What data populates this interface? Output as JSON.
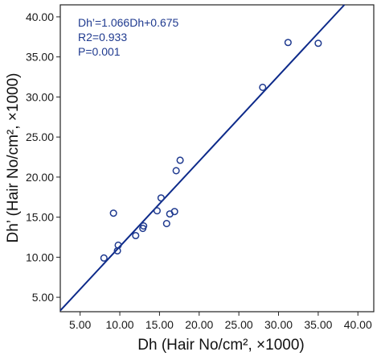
{
  "chart_data": {
    "type": "scatter",
    "xlabel": "Dh (Hair No/cm², ×1000)",
    "ylabel": "Dh’ (Hair No/cm², ×1000)",
    "xlim": [
      2.5,
      42.0
    ],
    "ylim": [
      3.2,
      41.5
    ],
    "x_ticks": [
      "5.00",
      "10.00",
      "15.00",
      "20.00",
      "25.00",
      "30.00",
      "35.00",
      "40.00"
    ],
    "y_ticks": [
      "5.00",
      "10.00",
      "15.00",
      "20.00",
      "25.00",
      "30.00",
      "35.00",
      "40.00"
    ],
    "grid": false,
    "annotations": [
      "Dh’=1.066Dh+0.675",
      "R2=0.933",
      "P=0.001"
    ],
    "fit_line": {
      "slope": 1.066,
      "intercept": 0.675
    },
    "points": [
      {
        "x": 8.0,
        "y": 9.9
      },
      {
        "x": 9.2,
        "y": 15.5
      },
      {
        "x": 9.7,
        "y": 10.8
      },
      {
        "x": 9.8,
        "y": 11.5
      },
      {
        "x": 12.0,
        "y": 12.7
      },
      {
        "x": 12.9,
        "y": 13.6
      },
      {
        "x": 13.0,
        "y": 13.9
      },
      {
        "x": 14.7,
        "y": 15.8
      },
      {
        "x": 15.2,
        "y": 17.4
      },
      {
        "x": 15.9,
        "y": 14.2
      },
      {
        "x": 16.3,
        "y": 15.4
      },
      {
        "x": 16.9,
        "y": 15.7
      },
      {
        "x": 17.1,
        "y": 20.8
      },
      {
        "x": 17.6,
        "y": 22.1
      },
      {
        "x": 28.0,
        "y": 31.2
      },
      {
        "x": 31.2,
        "y": 36.8
      },
      {
        "x": 35.0,
        "y": 36.7
      }
    ]
  },
  "colors": {
    "point": "#1f3a8f",
    "fit_line": "#0d2a8a",
    "annotation": "#1f3a8f",
    "axis": "#222222"
  }
}
